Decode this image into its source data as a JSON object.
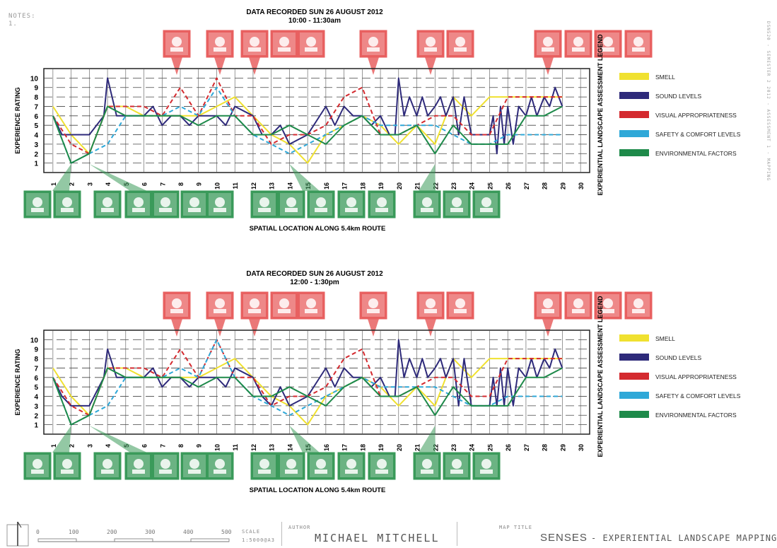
{
  "notes": [
    "NOTES:",
    "1."
  ],
  "side_code": "DSN520 - SEMESTER 2 2012 - ASSESSMENT 1 - MAPPING",
  "footer": {
    "scale_ticks": [
      "0",
      "100",
      "200",
      "300",
      "400",
      "500"
    ],
    "scale_label": "SCALE",
    "scale_value": "1:5000@A3",
    "author_label": "AUTHOR",
    "author_name": "MICHAEL MITCHELL",
    "map_title_label": "MAP TITLE",
    "map_title_main": "SENSES",
    "map_title_sub": "- EXPERIENTIAL LANDSCAPE MAPPING"
  },
  "legend": {
    "title": "EXPERIENTIAL LANDSCAPE ASSESSMENT LEGEND",
    "items": [
      {
        "label": "SMELL",
        "color": "#f0e130"
      },
      {
        "label": "SOUND LEVELS",
        "color": "#2e2a7a"
      },
      {
        "label": "VISUAL APPROPRIATENESS",
        "color": "#d42a2f"
      },
      {
        "label": "SAFETY & COMFORT LEVELS",
        "color": "#2fa8d8"
      },
      {
        "label": "ENVIRONMENTAL FACTORS",
        "color": "#1e8a4a"
      }
    ]
  },
  "top_icon_names": [
    "car-icon",
    "closed-vacant-sign-icon",
    "smoking-icon",
    "person-icon",
    "crowd-icon",
    "car-icon",
    "car-icon",
    "truck-icon",
    "car-icon",
    "truck-icon",
    "hand-icon",
    "drink-icon"
  ],
  "bottom_icon_names": [
    "hand-icon",
    "faces-icon",
    "playground-icon",
    "bird-icon",
    "crowd-icon",
    "gardener-icon",
    "tree-icon",
    "landscape-icon",
    "sign-icon",
    "crowd-icon",
    "plate-icon",
    "nose-icon",
    "cup-icon",
    "gardener-icon",
    "hand-icon",
    "hand-icon"
  ],
  "chart_data": [
    {
      "type": "line",
      "title": "DATA RECORDED SUN 26 AUGUST 2012",
      "subtitle": "10:00 - 11:30am",
      "xlabel": "SPATIAL LOCATION ALONG 5.4km ROUTE",
      "ylabel": "EXPERIENCE RATING",
      "ylim": [
        0,
        11
      ],
      "xlim": [
        0.5,
        30.5
      ],
      "categories": [
        "1",
        "2",
        "3",
        "4",
        "5",
        "6",
        "7",
        "8",
        "9",
        "10",
        "11",
        "12",
        "13",
        "14",
        "15",
        "16",
        "17",
        "18",
        "19",
        "20",
        "21",
        "22",
        "23",
        "24",
        "25",
        "26",
        "27",
        "28",
        "29",
        "30"
      ],
      "yticks": [
        1,
        2,
        3,
        4,
        5,
        6,
        7,
        8,
        9,
        10
      ],
      "grid": true,
      "series": [
        {
          "name": "SMELL",
          "color": "#f0e130",
          "dashed": false,
          "x": [
            1,
            2,
            3,
            4,
            5,
            6,
            7,
            8,
            9,
            10,
            11,
            12,
            13,
            14,
            15,
            16,
            17,
            18,
            19,
            20,
            21,
            22,
            23,
            24,
            25,
            26,
            27,
            28,
            29
          ],
          "y": [
            7,
            4,
            2,
            7,
            7,
            6,
            6,
            6,
            6,
            7,
            8,
            6,
            4,
            3,
            1,
            4,
            5,
            6,
            5,
            3,
            5,
            3,
            8,
            6,
            8,
            8,
            8,
            8,
            8
          ]
        },
        {
          "name": "SOUND LEVELS",
          "color": "#2e2a7a",
          "dashed": false,
          "x": [
            1,
            1.5,
            2,
            3,
            3.8,
            4,
            4.5,
            5,
            6,
            6.5,
            7,
            7.5,
            8,
            8.5,
            9,
            10,
            10.5,
            11,
            12,
            12.5,
            13,
            13.5,
            14,
            15,
            16,
            16.5,
            17,
            17.5,
            18,
            18.5,
            19,
            19.5,
            19.8,
            20,
            20.3,
            20.6,
            21,
            21.3,
            21.6,
            22,
            22.3,
            22.6,
            23,
            23.3,
            23.6,
            24,
            24.5,
            25,
            25.2,
            25.4,
            25.6,
            25.8,
            26,
            26.3,
            26.6,
            27,
            27.3,
            27.6,
            28,
            28.3,
            28.6,
            29
          ],
          "y": [
            6,
            4,
            4,
            4,
            6,
            10,
            6,
            6,
            6,
            7,
            5,
            6,
            6,
            5,
            6,
            6,
            5,
            7,
            6,
            4,
            4,
            5,
            3,
            4,
            7,
            5,
            7,
            6,
            6,
            5,
            6,
            4,
            4,
            10,
            6,
            8,
            6,
            8,
            6,
            7,
            8,
            6,
            8,
            4,
            8,
            4,
            4,
            4,
            6,
            2,
            7,
            3,
            7,
            3,
            7,
            6,
            8,
            6,
            8,
            7,
            9,
            7
          ],
          "note": "approximate oscillating reading"
        },
        {
          "name": "VISUAL APPROPRIATENESS",
          "color": "#d42a2f",
          "dashed": true,
          "x": [
            1,
            2,
            3,
            4,
            5,
            6,
            7,
            8,
            9,
            10,
            11,
            12,
            13,
            14,
            15,
            16,
            17,
            18,
            19,
            20,
            21,
            22,
            23,
            24,
            25,
            26,
            27,
            28,
            29
          ],
          "y": [
            6,
            3,
            2,
            7,
            7,
            7,
            6,
            9,
            6,
            10,
            6,
            6,
            3,
            4,
            4,
            5,
            8,
            9,
            4,
            4,
            5,
            6,
            6,
            4,
            4,
            8,
            8,
            8,
            8
          ]
        },
        {
          "name": "SAFETY & COMFORT LEVELS",
          "color": "#2fa8d8",
          "dashed": true,
          "x": [
            1,
            2,
            3,
            4,
            5,
            6,
            7,
            8,
            9,
            10,
            11,
            12,
            13,
            14,
            15,
            16,
            17,
            18,
            19,
            20,
            21,
            22,
            23,
            24,
            25,
            26,
            27,
            28,
            29
          ],
          "y": [
            6,
            1,
            2,
            3,
            6,
            6,
            6,
            7,
            6,
            9,
            6,
            4,
            3,
            2,
            3,
            4,
            5,
            6,
            5,
            5,
            5,
            5,
            4,
            3,
            3,
            4,
            4,
            4,
            4
          ]
        },
        {
          "name": "ENVIRONMENTAL FACTORS",
          "color": "#1e8a4a",
          "dashed": false,
          "x": [
            1,
            2,
            3,
            4,
            5,
            6,
            7,
            8,
            9,
            10,
            11,
            12,
            13,
            14,
            15,
            16,
            17,
            18,
            19,
            20,
            21,
            22,
            23,
            24,
            25,
            26,
            27,
            28,
            29
          ],
          "y": [
            6,
            1,
            2,
            7,
            6,
            6,
            6,
            6,
            5,
            6,
            6,
            4,
            4,
            5,
            4,
            3,
            5,
            6,
            4,
            4,
            5,
            2,
            5,
            3,
            3,
            3,
            6,
            6,
            7
          ]
        }
      ]
    },
    {
      "type": "line",
      "title": "DATA RECORDED SUN 26 AUGUST 2012",
      "subtitle": "12:00 - 1:30pm",
      "xlabel": "SPATIAL LOCATION ALONG 5.4km ROUTE",
      "ylabel": "EXPERIENCE RATING",
      "ylim": [
        0,
        11
      ],
      "xlim": [
        0.5,
        30.5
      ],
      "categories": [
        "1",
        "2",
        "3",
        "4",
        "5",
        "6",
        "7",
        "8",
        "9",
        "10",
        "11",
        "12",
        "13",
        "14",
        "15",
        "16",
        "17",
        "18",
        "19",
        "20",
        "21",
        "22",
        "23",
        "24",
        "25",
        "26",
        "27",
        "28",
        "29",
        "30"
      ],
      "yticks": [
        1,
        2,
        3,
        4,
        5,
        6,
        7,
        8,
        9,
        10
      ],
      "grid": true,
      "series": [
        {
          "name": "SMELL",
          "color": "#f0e130",
          "dashed": false,
          "x": [
            1,
            2,
            3,
            4,
            5,
            6,
            7,
            8,
            9,
            10,
            11,
            12,
            13,
            14,
            15,
            16,
            17,
            18,
            19,
            20,
            21,
            22,
            23,
            24,
            25,
            26,
            27,
            28,
            29
          ],
          "y": [
            7,
            4,
            2,
            7,
            7,
            6,
            6,
            6,
            6,
            7,
            8,
            6,
            4,
            3,
            1,
            4,
            5,
            6,
            5,
            3,
            5,
            3,
            8,
            6,
            8,
            8,
            8,
            8,
            8
          ]
        },
        {
          "name": "SOUND LEVELS",
          "color": "#2e2a7a",
          "dashed": false,
          "x": [
            1,
            1.5,
            2,
            3,
            3.8,
            4,
            4.5,
            5,
            6,
            6.5,
            7,
            7.5,
            8,
            8.5,
            9,
            10,
            10.5,
            11,
            12,
            12.5,
            13,
            13.5,
            14,
            15,
            16,
            16.5,
            17,
            17.5,
            18,
            18.5,
            19,
            19.5,
            19.8,
            20,
            20.3,
            20.6,
            21,
            21.3,
            21.6,
            22,
            22.3,
            22.6,
            23,
            23.3,
            23.6,
            24,
            24.5,
            25,
            25.2,
            25.4,
            25.6,
            25.8,
            26,
            26.3,
            26.6,
            27,
            27.3,
            27.6,
            28,
            28.3,
            28.6,
            29
          ],
          "y": [
            6,
            4,
            3,
            3,
            6,
            9,
            6,
            6,
            6,
            7,
            5,
            6,
            6,
            5,
            6,
            6,
            5,
            7,
            6,
            4,
            3,
            5,
            3,
            4,
            7,
            5,
            7,
            6,
            6,
            5,
            6,
            4,
            4,
            10,
            6,
            8,
            6,
            8,
            6,
            7,
            8,
            6,
            8,
            3,
            8,
            3,
            3,
            3,
            6,
            3,
            7,
            3,
            7,
            3,
            7,
            6,
            8,
            6,
            8,
            7,
            9,
            7
          ],
          "note": "approximate oscillating reading"
        },
        {
          "name": "VISUAL APPROPRIATENESS",
          "color": "#d42a2f",
          "dashed": true,
          "x": [
            1,
            2,
            3,
            4,
            5,
            6,
            7,
            8,
            9,
            10,
            11,
            12,
            13,
            14,
            15,
            16,
            17,
            18,
            19,
            20,
            21,
            22,
            23,
            24,
            25,
            26,
            27,
            28,
            29
          ],
          "y": [
            6,
            3,
            2,
            7,
            7,
            7,
            6,
            9,
            6,
            10,
            6,
            6,
            3,
            4,
            4,
            5,
            8,
            9,
            4,
            4,
            5,
            6,
            6,
            4,
            4,
            8,
            8,
            8,
            8
          ]
        },
        {
          "name": "SAFETY & COMFORT LEVELS",
          "color": "#2fa8d8",
          "dashed": true,
          "x": [
            1,
            2,
            3,
            4,
            5,
            6,
            7,
            8,
            9,
            10,
            11,
            12,
            13,
            14,
            15,
            16,
            17,
            18,
            19,
            20,
            21,
            22,
            23,
            24,
            25,
            26,
            27,
            28,
            29
          ],
          "y": [
            6,
            1,
            2,
            3,
            6,
            6,
            6,
            7,
            6,
            10,
            6,
            4,
            3,
            2,
            3,
            4,
            5,
            6,
            5,
            5,
            5,
            5,
            4,
            3,
            3,
            4,
            4,
            4,
            4
          ]
        },
        {
          "name": "ENVIRONMENTAL FACTORS",
          "color": "#1e8a4a",
          "dashed": false,
          "x": [
            1,
            2,
            3,
            4,
            5,
            6,
            7,
            8,
            9,
            10,
            11,
            12,
            13,
            14,
            15,
            16,
            17,
            18,
            19,
            20,
            21,
            22,
            23,
            24,
            25,
            26,
            27,
            28,
            29
          ],
          "y": [
            6,
            1,
            2,
            7,
            6,
            6,
            6,
            6,
            5,
            6,
            6,
            4,
            4,
            5,
            4,
            3,
            5,
            6,
            4,
            4,
            5,
            2,
            5,
            3,
            3,
            3,
            6,
            6,
            7
          ]
        }
      ]
    }
  ]
}
